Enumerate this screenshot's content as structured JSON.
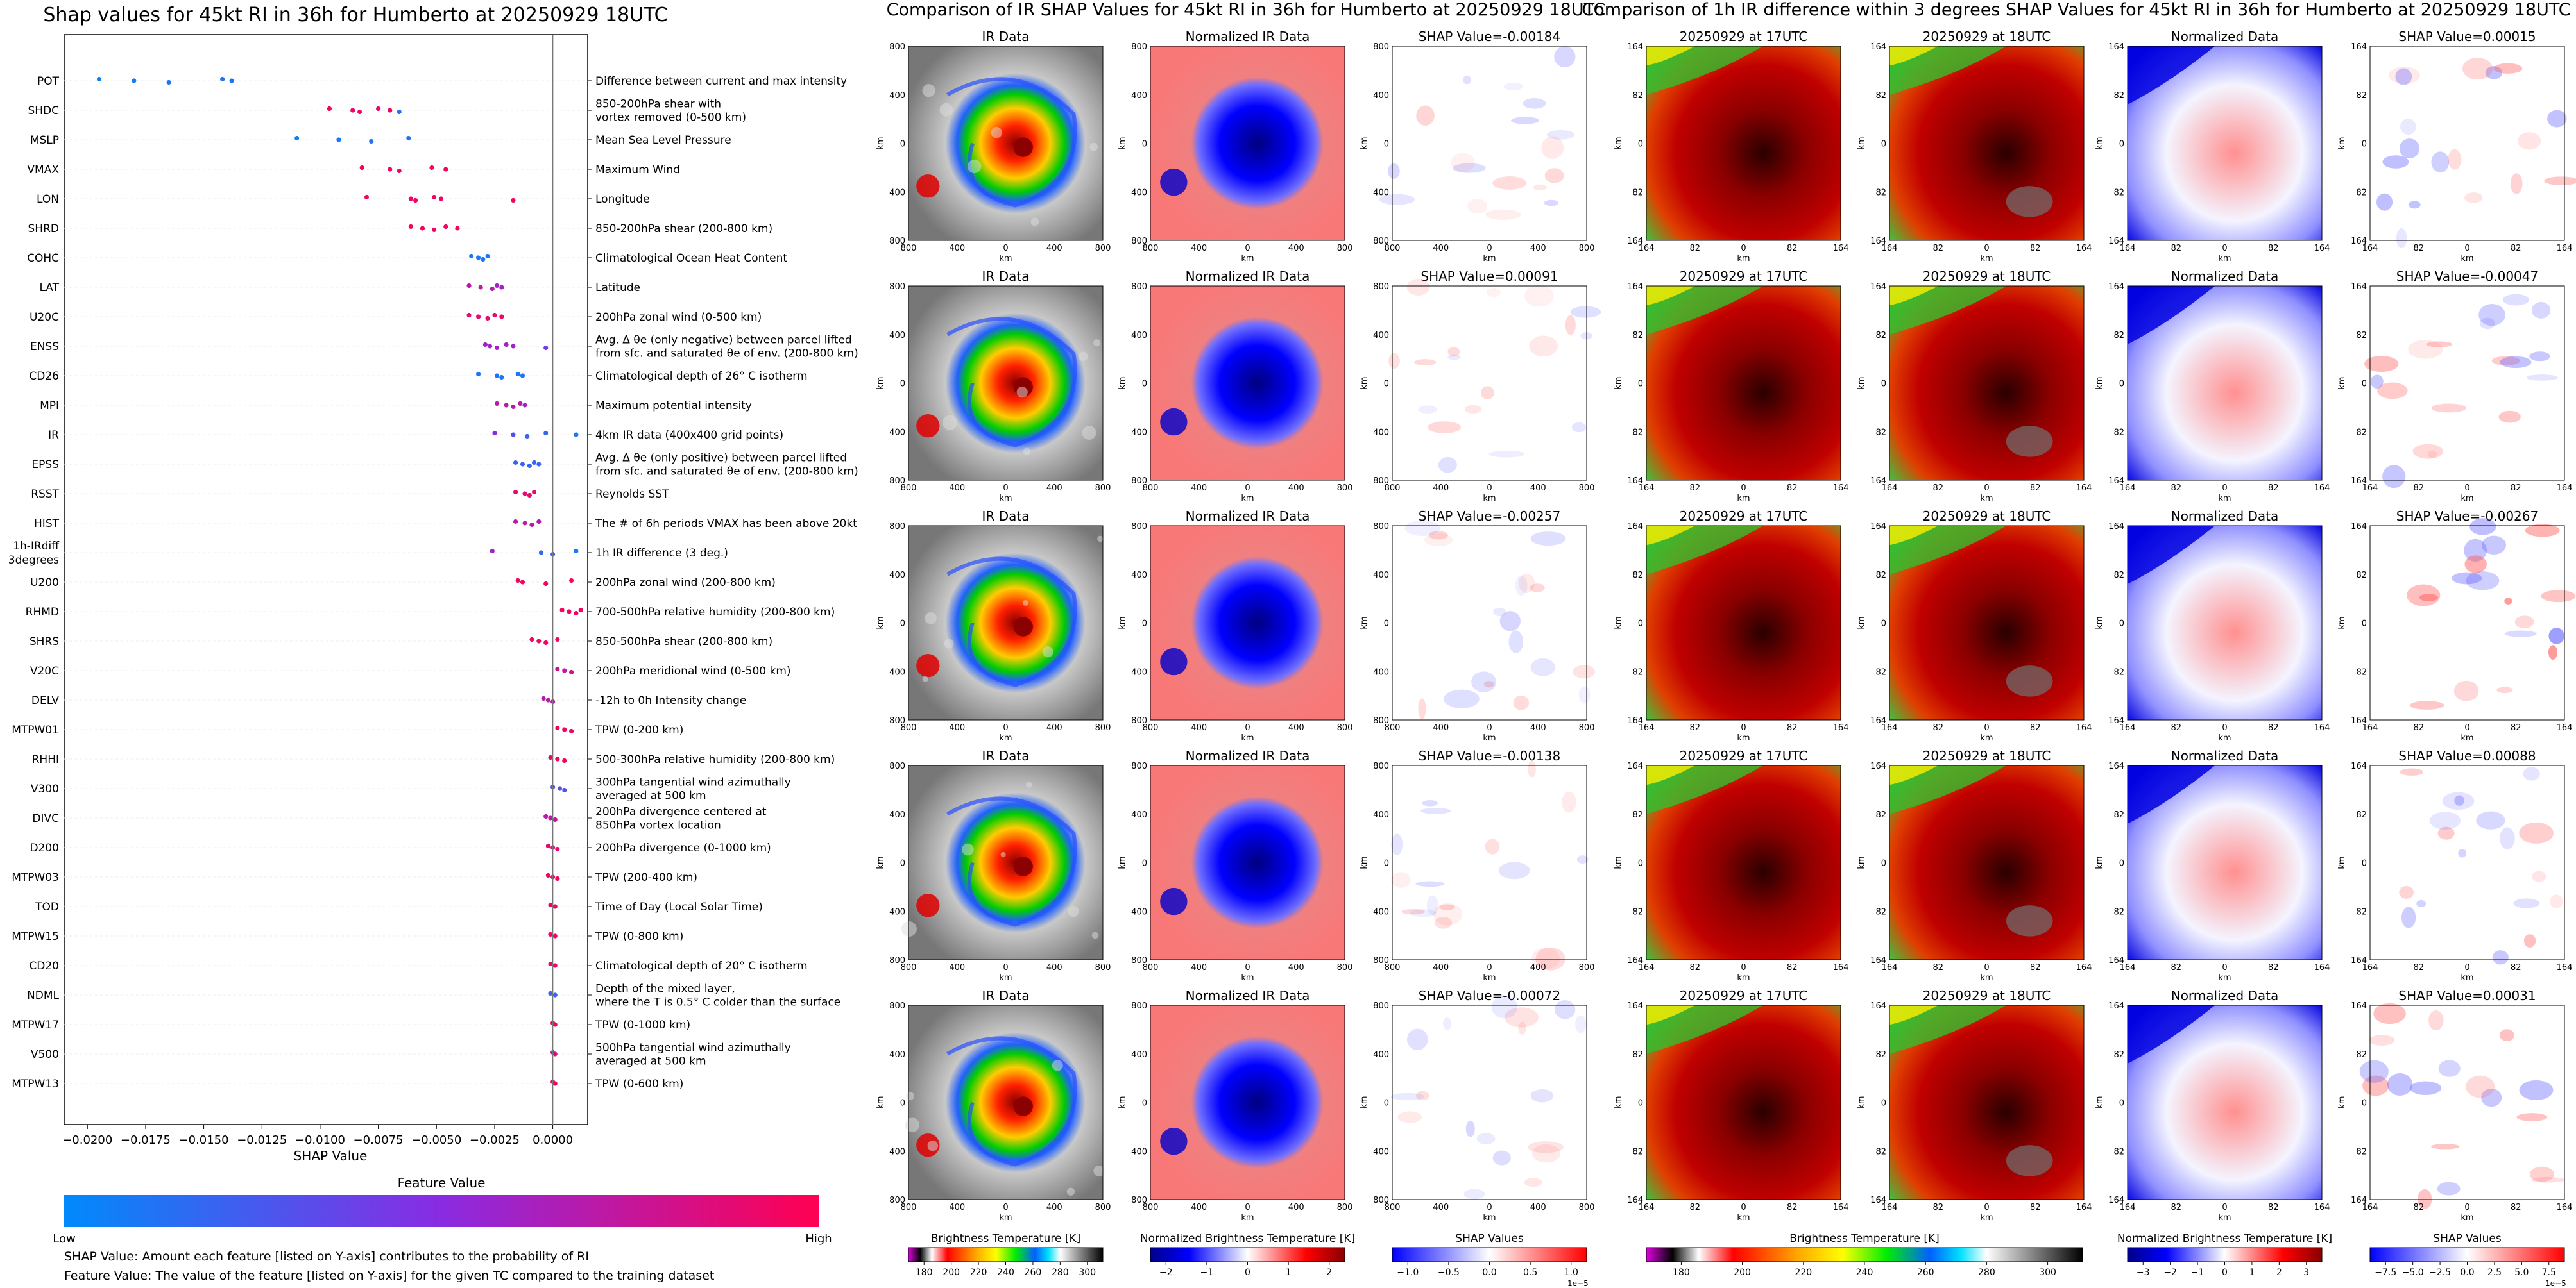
{
  "chart_data": [
    {
      "type": "scatter",
      "title": "Shap values for 45kt RI in 36h for Humberto at 20250929 18UTC",
      "xlabel": "SHAP Value",
      "xlim": [
        -0.021,
        0.0015
      ],
      "xticks": [
        -0.02,
        -0.0175,
        -0.015,
        -0.0125,
        -0.01,
        -0.0075,
        -0.005,
        -0.0025,
        0.0
      ],
      "xtick_labels": [
        "−0.0200",
        "−0.0175",
        "−0.0150",
        "−0.0125",
        "−0.0100",
        "−0.0075",
        "−0.0050",
        "−0.0025",
        "0.0000"
      ],
      "features": [
        {
          "name": "POT",
          "desc": [
            "Difference between current and max intensity"
          ],
          "points": [
            [
              -0.0195,
              0.05
            ],
            [
              -0.018,
              0.08
            ],
            [
              -0.0165,
              0.1
            ],
            [
              -0.0142,
              0.12
            ],
            [
              -0.0138,
              0.12
            ]
          ]
        },
        {
          "name": "SHDC",
          "desc": [
            "850-200hPa shear with",
            "vortex removed (0-500 km)"
          ],
          "points": [
            [
              -0.0096,
              0.95
            ],
            [
              -0.0086,
              0.92
            ],
            [
              -0.0083,
              0.9
            ],
            [
              -0.0075,
              0.9
            ],
            [
              -0.007,
              0.95
            ],
            [
              -0.0066,
              0.15
            ]
          ]
        },
        {
          "name": "MSLP",
          "desc": [
            "Mean Sea Level Pressure"
          ],
          "points": [
            [
              -0.011,
              0.05
            ],
            [
              -0.0092,
              0.1
            ],
            [
              -0.0078,
              0.15
            ],
            [
              -0.0062,
              0.12
            ]
          ]
        },
        {
          "name": "VMAX",
          "desc": [
            "Maximum Wind"
          ],
          "points": [
            [
              -0.0082,
              0.95
            ],
            [
              -0.007,
              0.92
            ],
            [
              -0.0066,
              0.92
            ],
            [
              -0.0052,
              0.95
            ],
            [
              -0.0046,
              0.95
            ]
          ]
        },
        {
          "name": "LON",
          "desc": [
            "Longitude"
          ],
          "points": [
            [
              -0.008,
              0.95
            ],
            [
              -0.0061,
              0.95
            ],
            [
              -0.0059,
              0.95
            ],
            [
              -0.0051,
              0.95
            ],
            [
              -0.0048,
              0.95
            ],
            [
              -0.0017,
              0.95
            ]
          ]
        },
        {
          "name": "SHRD",
          "desc": [
            "850-200hPa shear (200-800 km)"
          ],
          "points": [
            [
              -0.0061,
              0.95
            ],
            [
              -0.0056,
              0.95
            ],
            [
              -0.0051,
              0.95
            ],
            [
              -0.0046,
              0.95
            ],
            [
              -0.0041,
              0.95
            ]
          ]
        },
        {
          "name": "COHC",
          "desc": [
            "Climatological Ocean Heat Content"
          ],
          "points": [
            [
              -0.0035,
              0.1
            ],
            [
              -0.0032,
              0.1
            ],
            [
              -0.003,
              0.1
            ],
            [
              -0.0028,
              0.1
            ]
          ]
        },
        {
          "name": "LAT",
          "desc": [
            "Latitude"
          ],
          "points": [
            [
              -0.0036,
              0.7
            ],
            [
              -0.0031,
              0.7
            ],
            [
              -0.0026,
              0.7
            ],
            [
              -0.0024,
              0.6
            ],
            [
              -0.0022,
              0.6
            ]
          ]
        },
        {
          "name": "U20C",
          "desc": [
            "200hPa zonal wind (0-500 km)"
          ],
          "points": [
            [
              -0.0036,
              0.9
            ],
            [
              -0.0032,
              0.9
            ],
            [
              -0.0028,
              0.9
            ],
            [
              -0.0025,
              0.9
            ],
            [
              -0.0022,
              0.9
            ]
          ]
        },
        {
          "name": "ENSS",
          "desc": [
            "Avg. Δ θe (only negative) between parcel lifted",
            "from sfc. and saturated θe of env. (200-800 km)"
          ],
          "points": [
            [
              -0.0029,
              0.6
            ],
            [
              -0.0027,
              0.6
            ],
            [
              -0.0024,
              0.6
            ],
            [
              -0.002,
              0.6
            ],
            [
              -0.0017,
              0.6
            ],
            [
              -0.0003,
              0.4
            ]
          ]
        },
        {
          "name": "CD26",
          "desc": [
            "Climatological depth of 26° C isotherm"
          ],
          "points": [
            [
              -0.0032,
              0.1
            ],
            [
              -0.0024,
              0.1
            ],
            [
              -0.0022,
              0.1
            ],
            [
              -0.0015,
              0.1
            ],
            [
              -0.0013,
              0.1
            ]
          ]
        },
        {
          "name": "MPI",
          "desc": [
            "Maximum potential intensity"
          ],
          "points": [
            [
              -0.0024,
              0.7
            ],
            [
              -0.002,
              0.7
            ],
            [
              -0.0017,
              0.7
            ],
            [
              -0.0014,
              0.7
            ],
            [
              -0.0012,
              0.6
            ]
          ]
        },
        {
          "name": "IR",
          "desc": [
            "4km IR data (400x400 grid points)"
          ],
          "points": [
            [
              -0.0025,
              0.5
            ],
            [
              -0.0017,
              0.3
            ],
            [
              -0.0011,
              0.2
            ],
            [
              -0.0003,
              0.2
            ],
            [
              0.001,
              0.1
            ]
          ]
        },
        {
          "name": "EPSS",
          "desc": [
            "Avg. Δ θe (only positive) between parcel lifted",
            "from sfc. and saturated θe of env. (200-800 km)"
          ],
          "points": [
            [
              -0.0016,
              0.2
            ],
            [
              -0.0013,
              0.2
            ],
            [
              -0.001,
              0.2
            ],
            [
              -0.0008,
              0.2
            ],
            [
              -0.0006,
              0.2
            ]
          ]
        },
        {
          "name": "RSST",
          "desc": [
            "Reynolds SST"
          ],
          "points": [
            [
              -0.0016,
              0.9
            ],
            [
              -0.0012,
              0.9
            ],
            [
              -0.001,
              0.9
            ],
            [
              -0.0008,
              0.9
            ]
          ]
        },
        {
          "name": "HIST",
          "desc": [
            "The # of 6h periods VMAX has been above 20kt"
          ],
          "points": [
            [
              -0.0016,
              0.7
            ],
            [
              -0.0012,
              0.7
            ],
            [
              -0.0009,
              0.7
            ],
            [
              -0.0006,
              0.7
            ]
          ]
        },
        {
          "name": "1h-IRdiff\n3degrees",
          "desc": [
            "1h IR difference (3 deg.)"
          ],
          "points": [
            [
              -0.0026,
              0.6
            ],
            [
              -0.0005,
              0.2
            ],
            [
              0.0,
              0.2
            ],
            [
              0.001,
              0.1
            ]
          ]
        },
        {
          "name": "U200",
          "desc": [
            "200hPa zonal wind (200-800 km)"
          ],
          "points": [
            [
              -0.0015,
              0.95
            ],
            [
              -0.0013,
              0.95
            ],
            [
              -0.0003,
              0.95
            ],
            [
              0.0008,
              0.95
            ]
          ]
        },
        {
          "name": "RHMD",
          "desc": [
            "700-500hPa relative humidity (200-800 km)"
          ],
          "points": [
            [
              0.0004,
              0.95
            ],
            [
              0.0007,
              0.95
            ],
            [
              0.001,
              0.95
            ],
            [
              0.0012,
              0.95
            ]
          ]
        },
        {
          "name": "SHRS",
          "desc": [
            "850-500hPa shear (200-800 km)"
          ],
          "points": [
            [
              -0.0009,
              0.95
            ],
            [
              -0.0006,
              0.95
            ],
            [
              -0.0003,
              0.95
            ],
            [
              0.0002,
              0.95
            ]
          ]
        },
        {
          "name": "V20C",
          "desc": [
            "200hPa meridional wind (0-500 km)"
          ],
          "points": [
            [
              0.0002,
              0.8
            ],
            [
              0.0005,
              0.7
            ],
            [
              0.0008,
              0.8
            ]
          ]
        },
        {
          "name": "DELV",
          "desc": [
            "-12h to 0h Intensity change"
          ],
          "points": [
            [
              -0.0004,
              0.7
            ],
            [
              -0.0002,
              0.7
            ],
            [
              0.0,
              0.7
            ]
          ]
        },
        {
          "name": "MTPW01",
          "desc": [
            "TPW (0-200 km)"
          ],
          "points": [
            [
              0.0002,
              0.95
            ],
            [
              0.0005,
              0.95
            ],
            [
              0.0008,
              0.95
            ]
          ]
        },
        {
          "name": "RHHI",
          "desc": [
            "500-300hPa relative humidity (200-800 km)"
          ],
          "points": [
            [
              -0.0001,
              0.95
            ],
            [
              0.0002,
              0.95
            ],
            [
              0.0005,
              0.95
            ]
          ]
        },
        {
          "name": "V300",
          "desc": [
            "300hPa tangential wind azimuthally",
            "averaged at 500 km"
          ],
          "points": [
            [
              0.0,
              0.3
            ],
            [
              0.0003,
              0.3
            ],
            [
              0.0005,
              0.3
            ]
          ]
        },
        {
          "name": "DIVC",
          "desc": [
            "200hPa divergence centered at",
            "850hPa vortex location"
          ],
          "points": [
            [
              -0.0003,
              0.7
            ],
            [
              -0.0001,
              0.7
            ],
            [
              0.0001,
              0.7
            ]
          ]
        },
        {
          "name": "D200",
          "desc": [
            "200hPa divergence (0-1000 km)"
          ],
          "points": [
            [
              -0.0002,
              0.9
            ],
            [
              0.0,
              0.9
            ],
            [
              0.0002,
              0.9
            ]
          ]
        },
        {
          "name": "MTPW03",
          "desc": [
            "TPW (200-400 km)"
          ],
          "points": [
            [
              -0.0002,
              0.95
            ],
            [
              0.0,
              0.95
            ],
            [
              0.0002,
              0.95
            ]
          ]
        },
        {
          "name": "TOD",
          "desc": [
            "Time of Day (Local Solar Time)"
          ],
          "points": [
            [
              -0.0001,
              0.95
            ],
            [
              0.0001,
              0.95
            ]
          ]
        },
        {
          "name": "MTPW15",
          "desc": [
            "TPW (0-800 km)"
          ],
          "points": [
            [
              -0.0001,
              0.95
            ],
            [
              0.0001,
              0.95
            ]
          ]
        },
        {
          "name": "CD20",
          "desc": [
            "Climatological depth of 20° C isotherm"
          ],
          "points": [
            [
              -0.0001,
              0.9
            ],
            [
              0.0001,
              0.9
            ]
          ]
        },
        {
          "name": "NDML",
          "desc": [
            "Depth of the mixed layer,",
            "where the T is 0.5° C colder than the surface"
          ],
          "points": [
            [
              -0.0001,
              0.2
            ],
            [
              0.0001,
              0.2
            ]
          ]
        },
        {
          "name": "MTPW17",
          "desc": [
            "TPW (0-1000 km)"
          ],
          "points": [
            [
              0.0,
              0.95
            ],
            [
              0.0001,
              0.95
            ]
          ]
        },
        {
          "name": "V500",
          "desc": [
            "500hPa tangential wind azimuthally",
            "averaged at 500 km"
          ],
          "points": [
            [
              0.0,
              0.8
            ],
            [
              0.0001,
              0.8
            ]
          ]
        },
        {
          "name": "MTPW13",
          "desc": [
            "TPW (0-600 km)"
          ],
          "points": [
            [
              0.0,
              0.95
            ],
            [
              0.0001,
              0.95
            ]
          ]
        }
      ],
      "colorbar": {
        "title": "Feature Value",
        "low": "Low",
        "high": "High",
        "colors": [
          "#008afb",
          "#8a2be2",
          "#ff0052"
        ]
      }
    },
    {
      "type": "heatmap",
      "title": "Comparison of IR SHAP Values for 45kt RI in 36h for Humberto at 20250929 18UTC",
      "column_titles": [
        "IR Data",
        "Normalized IR Data",
        "SHAP Value="
      ],
      "shap_values": [
        "-0.00184",
        "0.00091",
        "-0.00257",
        "-0.00138",
        "-0.00072"
      ],
      "axis_label": "km",
      "ticks": [
        "800",
        "400",
        "0",
        "400",
        "800"
      ],
      "colorbars": [
        {
          "label": "Brightness Temperature [K]",
          "ticks": [
            "180",
            "200",
            "220",
            "240",
            "260",
            "280",
            "300"
          ]
        },
        {
          "label": "Normalized Brightness Temperature [K]",
          "ticks": [
            "−2",
            "−1",
            "0",
            "1",
            "2"
          ]
        },
        {
          "label": "SHAP Values",
          "ticks": [
            "−1.0",
            "−0.5",
            "0.0",
            "0.5",
            "1.0"
          ],
          "exponent": "1e−5"
        }
      ]
    },
    {
      "type": "heatmap",
      "title": "Comparison of 1h IR difference within 3 degrees SHAP Values for 45kt RI in 36h for Humberto at 20250929 18UTC",
      "column_titles": [
        "20250929 at 17UTC",
        "20250929 at 18UTC",
        "Normalized Data",
        "SHAP Value="
      ],
      "shap_values": [
        "0.00015",
        "-0.00047",
        "-0.00267",
        "0.00088",
        "0.00031"
      ],
      "axis_label": "km",
      "ticks": [
        "164",
        "82",
        "0",
        "82",
        "164"
      ],
      "colorbars": [
        {
          "label": "Brightness Temperature [K]",
          "ticks": [
            "180",
            "200",
            "220",
            "240",
            "260",
            "280",
            "300"
          ]
        },
        {
          "label": "Normalized Brightness Temperature [K]",
          "ticks": [
            "−3",
            "−2",
            "−1",
            "0",
            "1",
            "2",
            "3"
          ]
        },
        {
          "label": "SHAP Values",
          "ticks": [
            "−7.5",
            "−5.0",
            "−2.5",
            "0.0",
            "2.5",
            "5.0",
            "7.5"
          ],
          "exponent": "1e−5"
        }
      ]
    }
  ],
  "footer": {
    "line1": "SHAP Value: Amount each feature [listed on Y-axis] contributes to the probability of RI",
    "line2": "Feature Value: The value of the feature [listed on Y-axis] for the given TC compared to the training dataset"
  }
}
